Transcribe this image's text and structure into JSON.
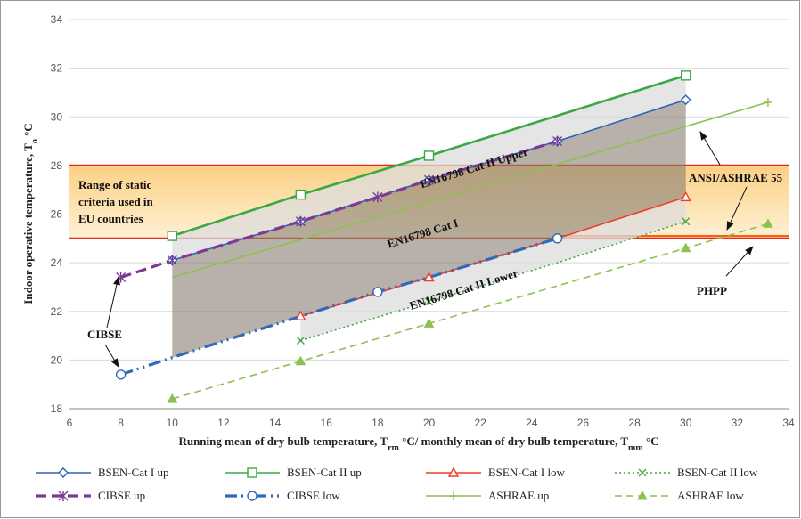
{
  "chart_data": {
    "type": "line",
    "xlabel_parts": [
      "Running mean of dry bulb temperature, T",
      "rm",
      " °C/ monthly mean of dry bulb temperature, T",
      "mm",
      " °C"
    ],
    "ylabel_parts": [
      "Indoor operative temperature, T",
      "o",
      " °C"
    ],
    "xlim": [
      6,
      34
    ],
    "ylim": [
      18,
      34
    ],
    "xticks": [
      6,
      8,
      10,
      12,
      14,
      16,
      18,
      20,
      22,
      24,
      26,
      28,
      30,
      32,
      34
    ],
    "yticks": [
      18,
      20,
      22,
      24,
      26,
      28,
      30,
      32,
      34
    ],
    "grid": "horizontal",
    "legend_position": "bottom",
    "series": [
      {
        "name": "BSEN-Cat I up",
        "color": "#2f62b5",
        "dash": "",
        "marker": "diamond",
        "points": [
          [
            10,
            24.1
          ],
          [
            15,
            25.7
          ],
          [
            20,
            27.4
          ],
          [
            25,
            29.0
          ],
          [
            30,
            30.7
          ]
        ],
        "mark_x": [
          10,
          15,
          20,
          25,
          30
        ]
      },
      {
        "name": "BSEN-Cat II up",
        "color": "#3aa845",
        "dash": "",
        "marker": "square",
        "points": [
          [
            10,
            25.1
          ],
          [
            15,
            26.8
          ],
          [
            20,
            28.4
          ],
          [
            30,
            31.7
          ]
        ],
        "mark_x": [
          10,
          15,
          20,
          30
        ]
      },
      {
        "name": "BSEN-Cat I low",
        "color": "#f03c2a",
        "dash": "",
        "marker": "triangle-open",
        "points": [
          [
            15,
            21.8
          ],
          [
            20,
            23.4
          ],
          [
            25,
            25.0
          ],
          [
            30,
            26.7
          ]
        ],
        "mark_x": [
          15,
          20,
          30
        ]
      },
      {
        "name": "BSEN-Cat II low",
        "color": "#4aa346",
        "dash": "2,3",
        "marker": "x",
        "points": [
          [
            15,
            20.8
          ],
          [
            20,
            22.4
          ],
          [
            25,
            24.0
          ],
          [
            30,
            25.7
          ]
        ],
        "mark_x": [
          15,
          20,
          30
        ]
      },
      {
        "name": "CIBSE up",
        "color": "#7b3a96",
        "dash": "12,6",
        "marker": "star",
        "points": [
          [
            8,
            23.4
          ],
          [
            10,
            24.1
          ],
          [
            15,
            25.7
          ],
          [
            18,
            26.7
          ],
          [
            20,
            27.4
          ],
          [
            25,
            29.0
          ]
        ],
        "mark_x": [
          8,
          10,
          15,
          18,
          20,
          25
        ]
      },
      {
        "name": "CIBSE low",
        "color": "#2e6ab8",
        "dash": "14,5,2,5,2,5",
        "marker": "circle",
        "points": [
          [
            8,
            19.4
          ],
          [
            10,
            20.1
          ],
          [
            15,
            21.8
          ],
          [
            18,
            22.8
          ],
          [
            20,
            23.4
          ],
          [
            25,
            25.0
          ]
        ],
        "mark_x": [
          8,
          18,
          25
        ]
      },
      {
        "name": "ASHRAE up",
        "color": "#8ec050",
        "dash": "",
        "marker": "plus",
        "points": [
          [
            10,
            23.4
          ],
          [
            33.2,
            30.6
          ]
        ],
        "mark_x": [
          33.2
        ]
      },
      {
        "name": "ASHRAE low",
        "color": "#8ec050",
        "dash": "8,5",
        "marker": "triangle-filled",
        "points": [
          [
            10,
            18.4
          ],
          [
            15,
            19.95
          ],
          [
            20,
            21.5
          ],
          [
            30,
            24.6
          ],
          [
            33.2,
            25.6
          ]
        ],
        "mark_x": [
          10,
          15,
          20,
          30,
          33.2
        ]
      }
    ],
    "static_band": {
      "y_low": 25,
      "y_high": 28,
      "x_from": 6,
      "x_to": 34,
      "line_color": "#e32b17"
    },
    "phpp_line": {
      "y": 25.1,
      "x_from": 25,
      "x_to": 34,
      "color": "#ff5b0a"
    },
    "band_labels": [
      {
        "text": "EN16798 Cat II Upper",
        "x": 21.8,
        "y": 27.75
      },
      {
        "text": "EN16798 Cat I",
        "x": 19.8,
        "y": 25.05
      },
      {
        "text": "EN16798 Cat II Lower",
        "x": 21.4,
        "y": 22.75
      }
    ],
    "annotations": {
      "static_criteria": [
        "Range of static",
        "criteria used in",
        "EU countries"
      ],
      "cibse": "CIBSE",
      "ashrae55": "ANSI/ASHRAE 55",
      "phpp": "PHPP"
    }
  }
}
